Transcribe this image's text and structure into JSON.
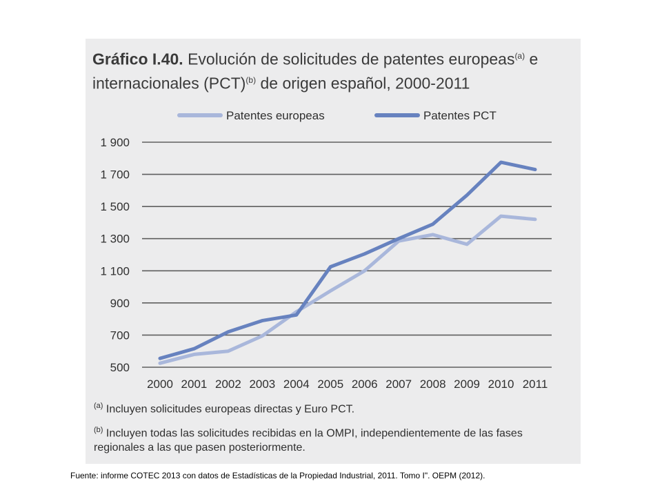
{
  "chart_data": {
    "type": "line",
    "title_prefix": "Gráfico I.40.",
    "title_line1": "Evolución de solicitudes de patentes europeas",
    "title_sup_a": "(a)",
    "title_e": " e",
    "title_line2_a": "internacionales (PCT)",
    "title_sup_b": "(b)",
    "title_line2_b": " de origen español, 2000-2011",
    "categories": [
      "2000",
      "2001",
      "2002",
      "2003",
      "2004",
      "2005",
      "2006",
      "2007",
      "2008",
      "2009",
      "2010",
      "2011"
    ],
    "yticks": [
      "1 900",
      "1 700",
      "1 500",
      "1 300",
      "1 100",
      "900",
      "700",
      "500"
    ],
    "ylim": [
      500,
      1900
    ],
    "series": [
      {
        "name": "Patentes europeas",
        "color": "#a9b7db",
        "values": [
          525,
          580,
          600,
          695,
          845,
          975,
          1100,
          1285,
          1325,
          1265,
          1440,
          1420
        ]
      },
      {
        "name": "Patentes PCT",
        "color": "#6782bf",
        "values": [
          555,
          615,
          720,
          790,
          825,
          1125,
          1205,
          1300,
          1390,
          1570,
          1775,
          1730
        ]
      }
    ],
    "grid": true,
    "legend_position": "top"
  },
  "notes": {
    "a_marker": "(a)",
    "a_text": "Incluyen solicitudes europeas directas y Euro PCT.",
    "b_marker": "(b)",
    "b_text": "Incluyen todas las solicitudes recibidas en la OMPI, independientemente de las fases regionales a las que pasen posteriormente."
  },
  "source": "Fuente: informe COTEC 2013 con datos de Estadísticas de la Propiedad Industrial, 2011. Tomo I\". OEPM (2012)."
}
